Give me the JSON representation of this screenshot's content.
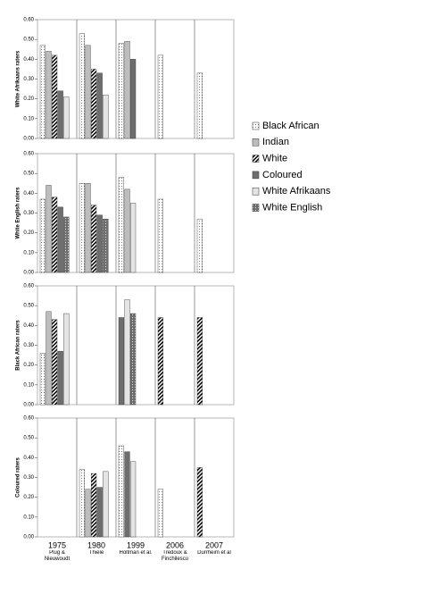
{
  "chart_data": [
    {
      "type": "bar",
      "ylabel": "White Afrikaans raters",
      "ylim": [
        0,
        0.6
      ],
      "yticks": [
        {
          "value": 0,
          "label": "0.00"
        },
        {
          "value": 0.1,
          "label": "0.10"
        },
        {
          "value": 0.2,
          "label": "0.20"
        },
        {
          "value": 0.3,
          "label": "0.30"
        },
        {
          "value": 0.4,
          "label": "0.40"
        },
        {
          "value": 0.5,
          "label": "0.50"
        },
        {
          "value": 0.6,
          "label": "0.60"
        }
      ],
      "series": [
        {
          "name": "Black African",
          "color": "#ffffff",
          "pattern": "dots",
          "values": [
            0.47,
            0.53,
            0.48,
            0.42,
            0.33
          ]
        },
        {
          "name": "Indian",
          "color": "#bdbdbd",
          "values": [
            0.44,
            0.47,
            0.49,
            null,
            null
          ]
        },
        {
          "name": "White",
          "color": "#ffffff",
          "pattern": "hatch",
          "values": [
            0.42,
            0.35,
            null,
            null,
            null
          ]
        },
        {
          "name": "Coloured",
          "color": "#6e6e6e",
          "values": [
            0.24,
            0.33,
            0.4,
            null,
            null
          ]
        },
        {
          "name": "White Afrikaans",
          "color": "#e4e4e4",
          "values": [
            0.21,
            0.22,
            null,
            null,
            null
          ]
        },
        {
          "name": "White English",
          "color": "#6e6e6e",
          "pattern": "darkdots",
          "values": [
            null,
            null,
            null,
            null,
            null
          ]
        }
      ]
    },
    {
      "type": "bar",
      "ylabel": "White English raters",
      "ylim": [
        0,
        0.6
      ],
      "yticks": [
        {
          "value": 0,
          "label": "0.00"
        },
        {
          "value": 0.1,
          "label": "0.10"
        },
        {
          "value": 0.2,
          "label": "0.20"
        },
        {
          "value": 0.3,
          "label": "0.30"
        },
        {
          "value": 0.4,
          "label": "0.40"
        },
        {
          "value": 0.5,
          "label": "0.50"
        },
        {
          "value": 0.6,
          "label": "0.60"
        }
      ],
      "series": [
        {
          "values": [
            0.37,
            0.45,
            0.48,
            0.37,
            0.27
          ]
        },
        {
          "values": [
            0.44,
            0.45,
            0.42,
            null,
            null
          ]
        },
        {
          "values": [
            0.38,
            0.34,
            null,
            null,
            null
          ]
        },
        {
          "values": [
            0.33,
            0.29,
            null,
            null,
            null
          ]
        },
        {
          "values": [
            null,
            null,
            0.35,
            null,
            null
          ]
        },
        {
          "values": [
            0.28,
            0.27,
            null,
            null,
            null
          ]
        }
      ]
    },
    {
      "type": "bar",
      "ylabel": "Black African raters",
      "ylim": [
        0,
        0.6
      ],
      "yticks": [
        {
          "value": 0,
          "label": "0.00"
        },
        {
          "value": 0.1,
          "label": "0.10"
        },
        {
          "value": 0.2,
          "label": "0.20"
        },
        {
          "value": 0.3,
          "label": "0.30"
        },
        {
          "value": 0.4,
          "label": "0.40"
        },
        {
          "value": 0.5,
          "label": "0.50"
        },
        {
          "value": 0.6,
          "label": "0.60"
        }
      ],
      "series": [
        {
          "values": [
            0.26,
            null,
            null,
            null,
            null
          ]
        },
        {
          "values": [
            0.47,
            null,
            null,
            null,
            null
          ]
        },
        {
          "values": [
            0.43,
            null,
            null,
            0.44,
            0.44
          ]
        },
        {
          "values": [
            0.27,
            null,
            0.44,
            null,
            null
          ]
        },
        {
          "values": [
            0.46,
            null,
            0.53,
            null,
            null
          ]
        },
        {
          "values": [
            null,
            null,
            0.46,
            null,
            null
          ]
        }
      ]
    },
    {
      "type": "bar",
      "ylabel": "Coloured raters",
      "ylim": [
        0,
        0.6
      ],
      "yticks": [
        {
          "value": 0,
          "label": "0.00"
        },
        {
          "value": 0.1,
          "label": "0.10"
        },
        {
          "value": 0.2,
          "label": "0.20"
        },
        {
          "value": 0.3,
          "label": "0.30"
        },
        {
          "value": 0.4,
          "label": "0.40"
        },
        {
          "value": 0.5,
          "label": "0.50"
        },
        {
          "value": 0.6,
          "label": "0.60"
        }
      ],
      "categories": [
        "1975",
        "1980",
        "1999",
        "2006",
        "2007"
      ],
      "category_sublabels": [
        "Plug & Nieuwoudt",
        "Thiele",
        "Holtman et al.",
        "Tredoux & Finchilescu",
        "Durrheim et al"
      ],
      "series": [
        {
          "values": [
            null,
            0.34,
            0.46,
            0.24,
            null
          ]
        },
        {
          "values": [
            null,
            0.24,
            null,
            null,
            null
          ]
        },
        {
          "values": [
            null,
            0.32,
            null,
            null,
            0.35
          ]
        },
        {
          "values": [
            null,
            0.25,
            0.43,
            null,
            null
          ]
        },
        {
          "values": [
            null,
            0.33,
            0.38,
            null,
            null
          ]
        },
        {
          "values": [
            null,
            null,
            null,
            null,
            null
          ]
        }
      ]
    }
  ]
}
